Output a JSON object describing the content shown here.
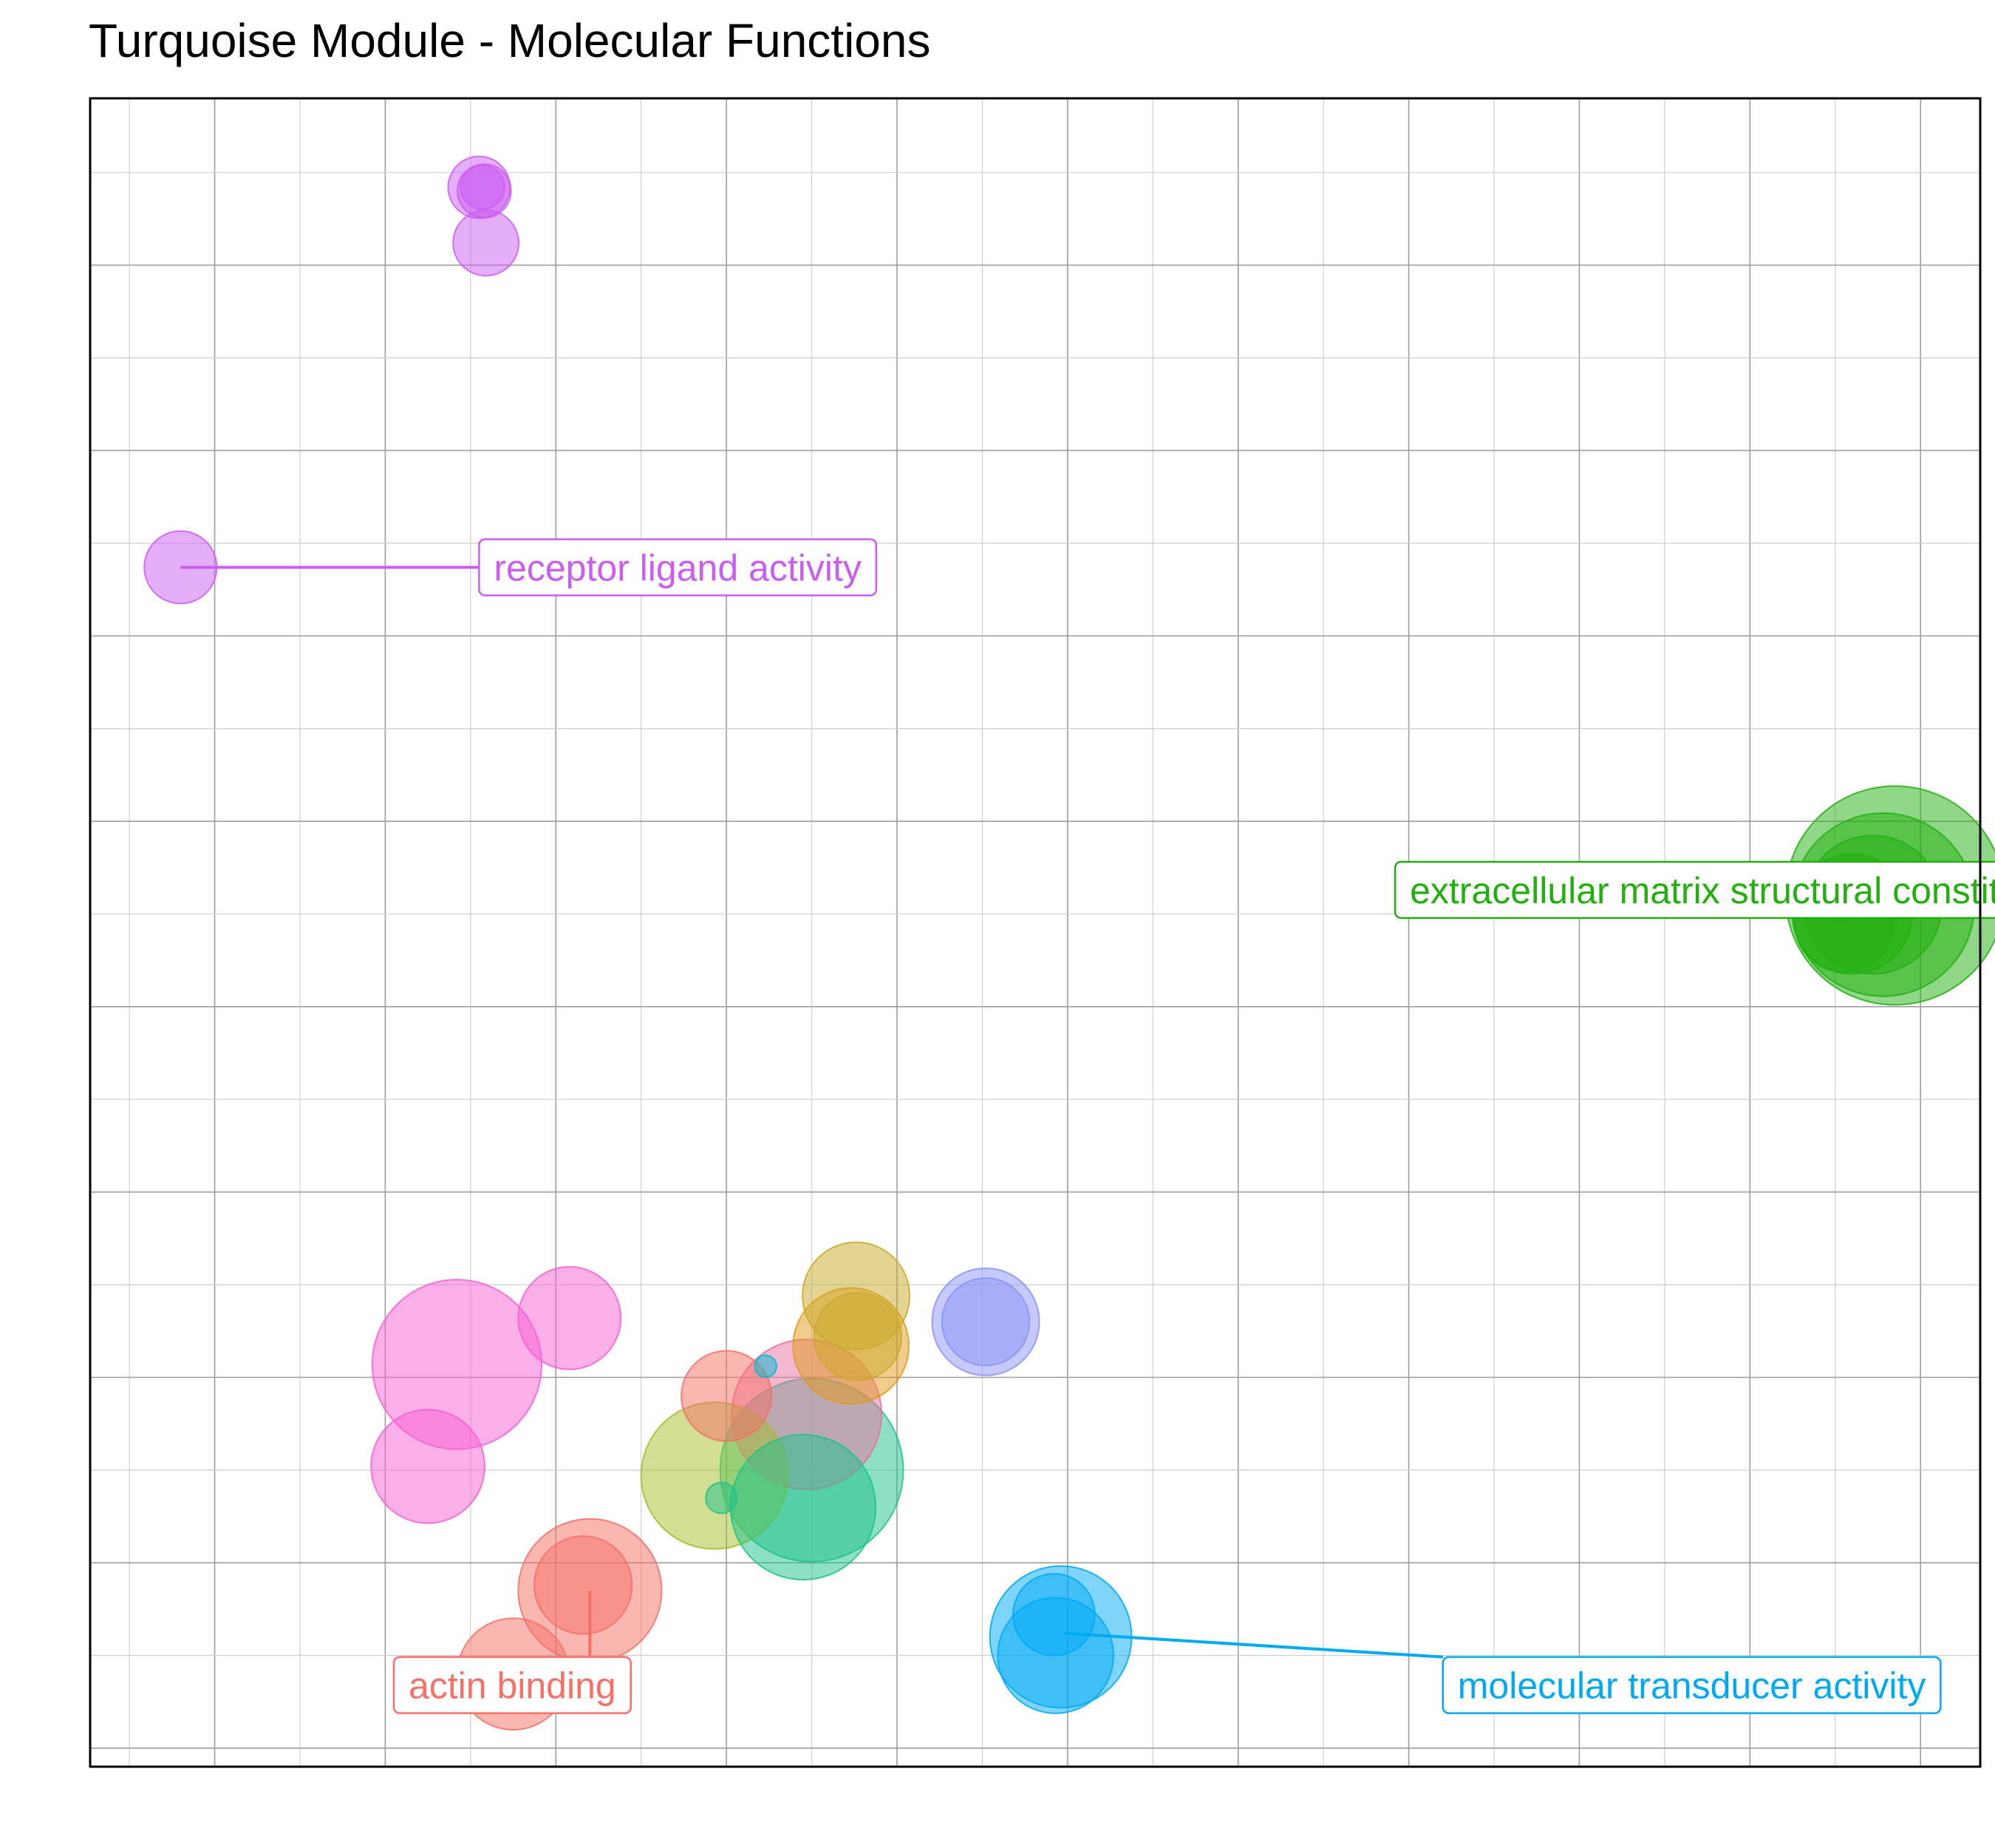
{
  "chart_data": {
    "type": "scatter",
    "title": "Turquoise Module - Molecular Functions",
    "xlabel": "",
    "ylabel": "",
    "xlim": [
      -0.73,
      10.35
    ],
    "ylim": [
      -0.1,
      8.9
    ],
    "grid": true,
    "legend": "none",
    "points": [
      {
        "x": 9.85,
        "y": 4.6,
        "size": 100,
        "color": "#22b00f",
        "group": "ecm"
      },
      {
        "x": 9.78,
        "y": 4.55,
        "size": 70,
        "color": "#22b00f",
        "group": "ecm"
      },
      {
        "x": 9.72,
        "y": 4.55,
        "size": 40,
        "color": "#22b00f",
        "group": "ecm"
      },
      {
        "x": 9.6,
        "y": 4.5,
        "size": 30,
        "color": "#22b00f",
        "group": "ecm"
      },
      {
        "x": 9.55,
        "y": 4.45,
        "size": 20,
        "color": "#22b00f",
        "group": "ecm"
      },
      {
        "x": 1.55,
        "y": 8.42,
        "size": 8,
        "color": "#cc5df2",
        "group": "receptor"
      },
      {
        "x": 1.58,
        "y": 8.4,
        "size": 6,
        "color": "#cc5df2",
        "group": "receptor"
      },
      {
        "x": 1.57,
        "y": 8.42,
        "size": 4,
        "color": "#cc5df2",
        "group": "receptor"
      },
      {
        "x": 1.59,
        "y": 8.12,
        "size": 9,
        "color": "#cc5df2",
        "group": "receptor"
      },
      {
        "x": -0.2,
        "y": 6.37,
        "size": 11,
        "color": "#cc5df2",
        "group": "receptor"
      },
      {
        "x": 1.42,
        "y": 2.07,
        "size": 60,
        "color": "#f760d3",
        "group": "pink"
      },
      {
        "x": 2.08,
        "y": 2.32,
        "size": 22,
        "color": "#f760d3",
        "group": "pink"
      },
      {
        "x": 1.25,
        "y": 1.52,
        "size": 27,
        "color": "#f760d3",
        "group": "pink"
      },
      {
        "x": 2.2,
        "y": 0.85,
        "size": 43,
        "color": "#f57066",
        "group": "actin"
      },
      {
        "x": 2.16,
        "y": 0.88,
        "size": 20,
        "color": "#f57066",
        "group": "actin"
      },
      {
        "x": 1.75,
        "y": 0.4,
        "size": 26,
        "color": "#f57066",
        "group": "actin"
      },
      {
        "x": 3.0,
        "y": 1.9,
        "size": 17,
        "color": "#f57066",
        "group": "actin"
      },
      {
        "x": 3.47,
        "y": 1.8,
        "size": 47,
        "color": "#e86fa0",
        "group": "rose"
      },
      {
        "x": 3.5,
        "y": 1.5,
        "size": 70,
        "color": "#1dc28a",
        "group": "teal"
      },
      {
        "x": 3.45,
        "y": 1.3,
        "size": 44,
        "color": "#1dc28a",
        "group": "teal"
      },
      {
        "x": 2.97,
        "y": 1.35,
        "size": 2,
        "color": "#1dc28a",
        "group": "teal"
      },
      {
        "x": 2.93,
        "y": 1.47,
        "size": 45,
        "color": "#a3bd2a",
        "group": "olive"
      },
      {
        "x": 3.73,
        "y": 2.17,
        "size": 28,
        "color": "#e2991b",
        "group": "orange"
      },
      {
        "x": 3.76,
        "y": 2.44,
        "size": 24,
        "color": "#c9a92a",
        "group": "gold"
      },
      {
        "x": 3.77,
        "y": 2.22,
        "size": 16,
        "color": "#c9a92a",
        "group": "gold"
      },
      {
        "x": 4.52,
        "y": 2.3,
        "size": 24,
        "color": "#8b93f7",
        "group": "lavender"
      },
      {
        "x": 4.52,
        "y": 2.3,
        "size": 16,
        "color": "#8b93f7",
        "group": "lavender"
      },
      {
        "x": 3.23,
        "y": 2.06,
        "size": 1,
        "color": "#00bcd0",
        "group": "cyan"
      },
      {
        "x": 4.96,
        "y": 0.6,
        "size": 42,
        "color": "#00a9f3",
        "group": "transducer"
      },
      {
        "x": 4.93,
        "y": 0.5,
        "size": 28,
        "color": "#00a9f3",
        "group": "transducer"
      },
      {
        "x": 4.92,
        "y": 0.72,
        "size": 14,
        "color": "#00a9f3",
        "group": "transducer"
      }
    ],
    "annotations": [
      {
        "text": "receptor ligand activity",
        "color": "#cc5df2",
        "x": -0.2,
        "y": 6.37,
        "lx": 1.55,
        "ly": 6.37
      },
      {
        "text": "extracellular matrix structural constituent",
        "color": "#22b00f",
        "x": 9.82,
        "y": 4.63,
        "lx": 6.92,
        "ly": 4.63
      },
      {
        "text": "actin binding",
        "color": "#f57066",
        "x": 2.2,
        "y": 0.85,
        "lx": 1.05,
        "ly": 0.34
      },
      {
        "text": "molecular transducer activity",
        "color": "#00a9f3",
        "x": 4.98,
        "y": 0.62,
        "lx": 7.2,
        "ly": 0.34
      }
    ]
  }
}
